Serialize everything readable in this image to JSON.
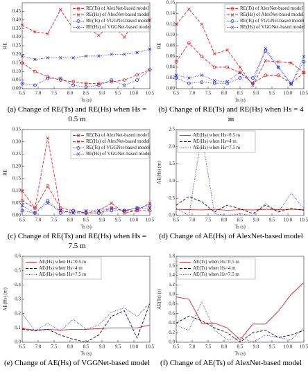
{
  "chart_data": [
    {
      "type": "line",
      "caption": "(a) Change of RE(Ts) and RE(Hs) when Hs = 0.5 m",
      "ylabel": "RE",
      "xlabel": "Ts (s)",
      "legend": "top-right",
      "x": [
        6.5,
        6.9,
        7.3,
        7.7,
        8.1,
        8.5,
        8.9,
        9.3,
        9.7,
        10.1,
        10.5
      ],
      "xlim": [
        6.5,
        10.5
      ],
      "xticks": [
        6.5,
        {
          "value": 7,
          "label": "7.0"
        },
        7.5,
        {
          "value": 8,
          "label": "8.0"
        },
        8.5,
        {
          "value": 9,
          "label": "9.0"
        },
        9.5,
        {
          "value": 10,
          "label": "10.0"
        },
        10.5
      ],
      "ylim": [
        0,
        0.5
      ],
      "yticks": [
        {
          "value": 0,
          "label": "0.00"
        },
        0.05,
        {
          "value": 0.1,
          "label": "0.10"
        },
        0.15,
        {
          "value": 0.2,
          "label": "0.20"
        },
        0.25,
        {
          "value": 0.3,
          "label": "0.30"
        },
        0.35,
        {
          "value": 0.4,
          "label": "0.40"
        },
        0.45
      ],
      "series": [
        {
          "name": "RE(Ts) of AlexNet-based model",
          "color": "#e02020",
          "line_style": "dashed",
          "marker": "circle",
          "values": [
            0.15,
            0.1,
            0.07,
            0.05,
            0.04,
            0.03,
            0.03,
            0.04,
            0.05,
            0.08,
            0.11
          ]
        },
        {
          "name": "RE(Hs) of AlexNet-based model",
          "color": "#e02020",
          "line_style": "dashed",
          "marker": "x",
          "values": [
            0.37,
            0.33,
            0.32,
            0.46,
            0.35,
            0.36,
            0.31,
            0.38,
            0.3,
            0.41,
            0.4
          ]
        },
        {
          "name": "RE(Ts) of VGGNet-based model",
          "color": "#2030e0",
          "line_style": "dotted",
          "marker": "circle",
          "values": [
            0.03,
            0.02,
            0.06,
            0.06,
            0.02,
            0.01,
            0.02,
            0.05,
            0.02,
            0.05,
            0.11
          ]
        },
        {
          "name": "RE(Hs) of VGGNet-based model",
          "color": "#2030e0",
          "line_style": "dotted",
          "marker": "x",
          "values": [
            0.19,
            0.17,
            0.18,
            0.18,
            0.18,
            0.19,
            0.19,
            0.2,
            0.2,
            0.21,
            0.23
          ]
        }
      ]
    },
    {
      "type": "line",
      "caption": "(b) Change of RE(Ts) and RE(Hs) when Hs = 4 m",
      "ylabel": "RE",
      "xlabel": "Ts (s)",
      "legend": "top-right",
      "x": [
        6.5,
        6.9,
        7.3,
        7.7,
        8.1,
        8.5,
        8.9,
        9.3,
        9.7,
        10.1,
        10.5
      ],
      "xlim": [
        6.5,
        10.5
      ],
      "xticks": [
        6.5,
        {
          "value": 7,
          "label": "7.0"
        },
        7.5,
        {
          "value": 8,
          "label": "8.0"
        },
        8.5,
        {
          "value": 9,
          "label": "9.0"
        },
        9.5,
        {
          "value": 10,
          "label": "10.0"
        },
        10.5
      ],
      "ylim": [
        0,
        0.16
      ],
      "yticks": [
        {
          "value": 0,
          "label": "0.00"
        },
        0.02,
        0.04,
        0.06,
        0.08,
        {
          "value": 0.1,
          "label": "0.10"
        },
        0.12,
        0.14,
        0.16
      ],
      "series": [
        {
          "name": "RE(Ts) of AlexNet-based model",
          "color": "#e02020",
          "line_style": "dashed",
          "marker": "circle",
          "values": [
            0.05,
            0.085,
            0.06,
            0.04,
            0.04,
            0.03,
            0.01,
            0.025,
            0.025,
            0.01,
            0.03
          ]
        },
        {
          "name": "RE(Hs) of AlexNet-based model",
          "color": "#e02020",
          "line_style": "dashed",
          "marker": "x",
          "values": [
            0.12,
            0.148,
            0.12,
            0.065,
            0.072,
            0.04,
            0.006,
            0.052,
            0.05,
            0.048,
            0.03
          ]
        },
        {
          "name": "RE(Ts) of VGGNet-based model",
          "color": "#2030e0",
          "line_style": "dotted",
          "marker": "circle",
          "values": [
            0.02,
            0.01,
            0.012,
            0.01,
            0.01,
            0.02,
            0.02,
            0.07,
            0.04,
            0.01,
            0.05
          ]
        },
        {
          "name": "RE(Hs) of VGGNet-based model",
          "color": "#2030e0",
          "line_style": "dotted",
          "marker": "x",
          "values": [
            0.025,
            0.02,
            0.025,
            0.015,
            0.013,
            0.03,
            0.01,
            0.075,
            0.04,
            0.008,
            0.06
          ]
        }
      ]
    },
    {
      "type": "line",
      "caption": "(c) Change of RE(Ts) and RE(Hs) when Hs = 7.5 m",
      "ylabel": "RE",
      "xlabel": "Ts (s)",
      "legend": "top-right",
      "x": [
        6.5,
        6.9,
        7.3,
        7.7,
        8.1,
        8.5,
        8.9,
        9.3,
        9.7,
        10.1,
        10.5
      ],
      "xlim": [
        6.5,
        10.5
      ],
      "xticks": [
        6.5,
        {
          "value": 7,
          "label": "7.0"
        },
        7.5,
        {
          "value": 8,
          "label": "8.0"
        },
        8.5,
        {
          "value": 9,
          "label": "9.0"
        },
        9.5,
        {
          "value": 10,
          "label": "10.0"
        },
        10.5
      ],
      "ylim": [
        0,
        0.35
      ],
      "yticks": [
        {
          "value": 0,
          "label": "0.00"
        },
        0.05,
        {
          "value": 0.1,
          "label": "0.10"
        },
        0.15,
        {
          "value": 0.2,
          "label": "0.20"
        },
        0.25,
        {
          "value": 0.3,
          "label": "0.30"
        },
        0.35
      ],
      "series": [
        {
          "name": "RE(Ts) of AlexNet-based model",
          "color": "#e02020",
          "line_style": "dashed",
          "marker": "circle",
          "values": [
            0.06,
            0.03,
            0.12,
            0.03,
            0.02,
            0.01,
            0.01,
            0.03,
            0.02,
            0.02,
            0.02
          ]
        },
        {
          "name": "RE(Hs) of AlexNet-based model",
          "color": "#e02020",
          "line_style": "dashed",
          "marker": "x",
          "values": [
            0.1,
            0.03,
            0.315,
            0.02,
            0.01,
            0.01,
            0.02,
            0.05,
            0.01,
            0.02,
            0.05
          ]
        },
        {
          "name": "RE(Ts) of VGGNet-based model",
          "color": "#2030e0",
          "line_style": "dotted",
          "marker": "circle",
          "values": [
            0.02,
            0.01,
            0.06,
            0.01,
            0.02,
            0.01,
            0.01,
            0.02,
            0.02,
            0.03,
            0.04
          ]
        },
        {
          "name": "RE(Hs) of VGGNet-based model",
          "color": "#2030e0",
          "line_style": "dotted",
          "marker": "x",
          "values": [
            0.04,
            0.01,
            0.05,
            0.02,
            0.01,
            0.02,
            0.02,
            0.03,
            0.02,
            0.03,
            0.03
          ]
        }
      ]
    },
    {
      "type": "line",
      "caption": "(d) Change of AE(Hs) of AlexNet-based model",
      "ylabel": "AE(Hs) (m)",
      "xlabel": "Ts (s)",
      "legend": "top-left",
      "x": [
        6.5,
        6.9,
        7.3,
        7.7,
        8.1,
        8.5,
        8.9,
        9.3,
        9.7,
        10.1,
        10.5
      ],
      "xlim": [
        6.5,
        10.5
      ],
      "xticks": [
        6.5,
        {
          "value": 7,
          "label": "7.0"
        },
        7.5,
        {
          "value": 8,
          "label": "8.0"
        },
        8.5,
        {
          "value": 9,
          "label": "9.0"
        },
        9.5,
        {
          "value": 10,
          "label": "10.0"
        },
        10.5
      ],
      "ylim": [
        0,
        2.5
      ],
      "yticks": [
        {
          "value": 0,
          "label": "0.0"
        },
        0.5,
        {
          "value": 1,
          "label": "1.0"
        },
        1.5,
        {
          "value": 2,
          "label": "2.0"
        },
        2.5
      ],
      "series": [
        {
          "name": "AE(Hs) when Hs=0.5 m",
          "color": "#e02020",
          "line_style": "solid",
          "marker": "none",
          "values": [
            0.18,
            0.17,
            0.16,
            0.18,
            0.15,
            0.17,
            0.16,
            0.18,
            0.17,
            0.18,
            0.17
          ]
        },
        {
          "name": "AE(Hs) when Hs=4 m",
          "color": "#111111",
          "line_style": "dashed",
          "marker": "none",
          "values": [
            0.3,
            0.55,
            0.4,
            0.1,
            0.3,
            0.2,
            0.05,
            0.3,
            0.1,
            0.2,
            0.15
          ]
        },
        {
          "name": "AE(Hs) when Hs=7.5 m",
          "color": "#2030e0",
          "line_style": "dotted",
          "marker": "none",
          "values": [
            0.2,
            0.0,
            2.35,
            0.05,
            0.0,
            0.05,
            0.0,
            0.35,
            0.1,
            0.65,
            0.2
          ]
        }
      ]
    },
    {
      "type": "line",
      "caption": "(e) Change of AE(Hs) of VGGNet-based model",
      "ylabel": "AE(Hs) (m)",
      "xlabel": "Ts (s)",
      "legend": "top-left",
      "x": [
        6.5,
        6.9,
        7.3,
        7.7,
        8.1,
        8.5,
        8.9,
        9.3,
        9.7,
        10.1,
        10.5
      ],
      "xlim": [
        6.5,
        10.5
      ],
      "xticks": [
        6.5,
        {
          "value": 7,
          "label": "7.0"
        },
        7.5,
        {
          "value": 8,
          "label": "8.0"
        },
        8.5,
        {
          "value": 9,
          "label": "9.0"
        },
        9.5,
        {
          "value": 10,
          "label": "10.0"
        },
        10.5
      ],
      "ylim": [
        0,
        0.6
      ],
      "yticks": [
        {
          "value": 0,
          "label": "0.0"
        },
        0.1,
        0.2,
        0.3,
        0.4,
        0.5,
        0.6
      ],
      "series": [
        {
          "name": "AE(Hs) when Hs=0.5 m",
          "color": "#e02020",
          "line_style": "solid",
          "marker": "none",
          "values": [
            0.095,
            0.085,
            0.09,
            0.085,
            0.09,
            0.09,
            0.095,
            0.1,
            0.1,
            0.1,
            0.12
          ]
        },
        {
          "name": "AE(Hs) when Hs=4 m",
          "color": "#111111",
          "line_style": "dashed",
          "marker": "none",
          "values": [
            0.09,
            0.08,
            0.09,
            0.05,
            0.02,
            0.0,
            0.05,
            0.18,
            0.22,
            0.03,
            0.27
          ]
        },
        {
          "name": "AE(Hs) when Hs=7.5 m",
          "color": "#2030e0",
          "line_style": "dotted",
          "marker": "none",
          "values": [
            0.2,
            0.08,
            0.13,
            0.08,
            0.16,
            0.09,
            0.12,
            0.21,
            0.24,
            0.18,
            0.27
          ]
        }
      ]
    },
    {
      "type": "line",
      "caption": "(f) Change of AE(Ts) of AlexNet-based model",
      "ylabel": "AE(Ts) (s)",
      "xlabel": "Ts (s)",
      "legend": "top-left",
      "x": [
        6.5,
        6.9,
        7.3,
        7.7,
        8.1,
        8.5,
        8.9,
        9.3,
        9.7,
        10.1,
        10.5
      ],
      "xlim": [
        6.5,
        10.5
      ],
      "xticks": [
        6.5,
        {
          "value": 7,
          "label": "7.0"
        },
        7.5,
        {
          "value": 8,
          "label": "8.0"
        },
        8.5,
        {
          "value": 9,
          "label": "9.0"
        },
        9.5,
        {
          "value": 10,
          "label": "10.0"
        },
        10.5
      ],
      "ylim": [
        0,
        1.8
      ],
      "yticks": [
        {
          "value": 0,
          "label": "0.0"
        },
        0.2,
        0.4,
        0.6,
        0.8,
        {
          "value": 1,
          "label": "1.0"
        },
        1.2,
        1.4,
        1.6,
        1.8
      ],
      "series": [
        {
          "name": "AE(Ts) when Hs=0.5 m",
          "color": "#e02020",
          "line_style": "solid",
          "marker": "none",
          "values": [
            0.95,
            0.9,
            0.4,
            0.4,
            0.3,
            0.05,
            0.38,
            0.38,
            0.65,
            1.0,
            1.25
          ]
        },
        {
          "name": "AE(Ts) when Hs=4 m",
          "color": "#111111",
          "line_style": "dashed",
          "marker": "none",
          "values": [
            0.4,
            0.55,
            0.45,
            0.3,
            0.2,
            0.0,
            0.2,
            0.25,
            0.1,
            0.15,
            0.25
          ]
        },
        {
          "name": "AE(Ts) when Hs=7.5 m",
          "color": "#2030e0",
          "line_style": "dotted",
          "marker": "none",
          "values": [
            0.35,
            0.25,
            0.85,
            0.25,
            0.05,
            0.1,
            0.0,
            0.15,
            0.1,
            0.05,
            0.3
          ]
        }
      ]
    }
  ]
}
